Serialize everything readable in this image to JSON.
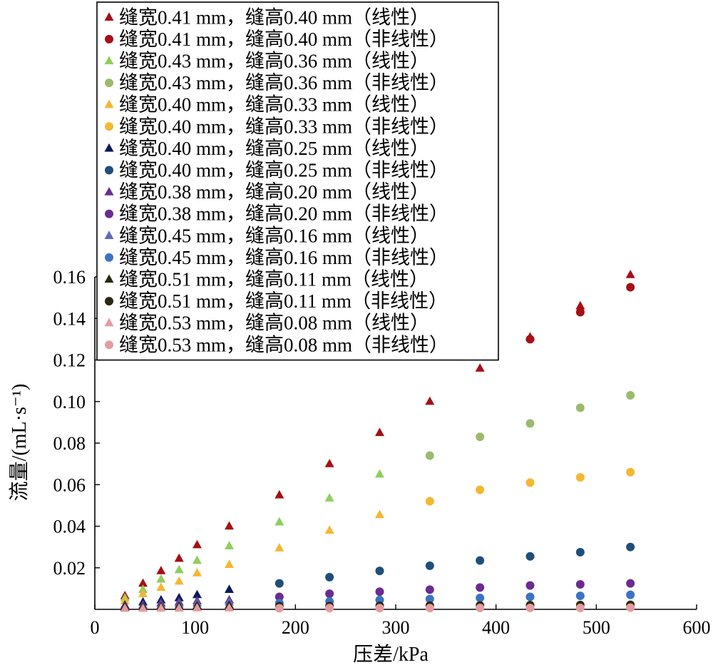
{
  "chart_data": {
    "type": "scatter",
    "xlabel": "压差/kPa",
    "ylabel": "流量/(mL·s⁻¹)",
    "xlim": [
      0,
      600
    ],
    "ylim": [
      0,
      0.16
    ],
    "xticks": [
      "0",
      "100",
      "200",
      "300",
      "400",
      "500",
      "600"
    ],
    "yticks": [
      "0.02",
      "0.04",
      "0.06",
      "0.08",
      "0.10",
      "0.12",
      "0.14",
      "0.16"
    ],
    "grid": false,
    "legend_position": "top-left",
    "x": [
      30,
      48,
      66,
      84,
      102,
      134,
      184,
      234,
      284,
      334,
      384,
      434,
      484,
      534
    ],
    "series": [
      {
        "name": "缝宽0.41 mm，缝高0.40 mm（线性）",
        "marker": "triangle",
        "color": "#a50f15",
        "values": [
          0.0065,
          0.0125,
          0.0185,
          0.0245,
          0.031,
          0.04,
          0.055,
          0.07,
          0.085,
          0.1,
          0.116,
          0.131,
          0.146,
          0.161
        ]
      },
      {
        "name": "缝宽0.41 mm，缝高0.40 mm（非线性）",
        "marker": "circle",
        "color": "#a50f15",
        "values": [
          null,
          null,
          null,
          null,
          null,
          null,
          null,
          null,
          null,
          null,
          null,
          0.13,
          0.143,
          0.155
        ]
      },
      {
        "name": "缝宽0.43 mm，缝高0.36 mm（线性）",
        "marker": "triangle",
        "color": "#8fce5e",
        "values": [
          0.0055,
          0.0095,
          0.0145,
          0.019,
          0.0235,
          0.0305,
          0.042,
          0.0535,
          0.065,
          null,
          null,
          null,
          null,
          null
        ]
      },
      {
        "name": "缝宽0.43 mm，缝高0.36 mm（非线性）",
        "marker": "circle",
        "color": "#9bbb6c",
        "values": [
          null,
          null,
          null,
          null,
          null,
          null,
          null,
          null,
          null,
          0.074,
          0.083,
          0.0895,
          0.097,
          0.103
        ]
      },
      {
        "name": "缝宽0.40 mm，缝高0.33 mm（线性）",
        "marker": "triangle",
        "color": "#f5b731",
        "values": [
          0.004,
          0.0075,
          0.0105,
          0.0135,
          0.0175,
          0.0215,
          0.0295,
          0.038,
          0.0455,
          null,
          null,
          null,
          null,
          null
        ]
      },
      {
        "name": "缝宽0.40 mm，缝高0.33 mm（非线性）",
        "marker": "circle",
        "color": "#f5b731",
        "values": [
          null,
          null,
          null,
          null,
          null,
          null,
          null,
          null,
          null,
          0.052,
          0.0575,
          0.061,
          0.0635,
          0.066
        ]
      },
      {
        "name": "缝宽0.40 mm，缝高0.25 mm（线性）",
        "marker": "triangle",
        "color": "#0b1a5c",
        "values": [
          0.002,
          0.0035,
          0.0045,
          0.0055,
          0.007,
          0.0095,
          null,
          null,
          null,
          null,
          null,
          null,
          null,
          null
        ]
      },
      {
        "name": "缝宽0.40 mm，缝高0.25 mm（非线性）",
        "marker": "circle",
        "color": "#1f4e79",
        "values": [
          null,
          null,
          null,
          null,
          null,
          null,
          0.0125,
          0.0155,
          0.0185,
          0.021,
          0.0235,
          0.0255,
          0.0275,
          0.03
        ]
      },
      {
        "name": "缝宽0.38 mm，缝高0.20 mm（线性）",
        "marker": "triangle",
        "color": "#6a2c91",
        "values": [
          0.0015,
          0.002,
          0.003,
          0.0035,
          0.004,
          0.0045,
          null,
          null,
          null,
          null,
          null,
          null,
          null,
          null
        ]
      },
      {
        "name": "缝宽0.38 mm，缝高0.20 mm（非线性）",
        "marker": "circle",
        "color": "#6a2c91",
        "values": [
          null,
          null,
          null,
          null,
          null,
          null,
          0.006,
          0.0075,
          0.0085,
          0.0095,
          0.0105,
          0.0115,
          0.012,
          0.0125
        ]
      },
      {
        "name": "缝宽0.45 mm，缝高0.16 mm（线性）",
        "marker": "triangle",
        "color": "#5b6bc0",
        "values": [
          0.001,
          0.0015,
          0.002,
          0.0025,
          0.003,
          0.0035,
          null,
          null,
          null,
          null,
          null,
          null,
          null,
          null
        ]
      },
      {
        "name": "缝宽0.45 mm，缝高0.16 mm（非线性）",
        "marker": "circle",
        "color": "#3b73c4",
        "values": [
          null,
          null,
          null,
          null,
          null,
          null,
          0.003,
          0.0038,
          0.0045,
          0.005,
          0.0055,
          0.006,
          0.0065,
          0.007
        ]
      },
      {
        "name": "缝宽0.51 mm，缝高0.11 mm（线性）",
        "marker": "triangle",
        "color": "#2b2a10",
        "values": [
          0.001,
          0.0012,
          0.0014,
          0.0016,
          0.0018,
          0.002,
          null,
          null,
          null,
          null,
          null,
          null,
          null,
          null
        ]
      },
      {
        "name": "缝宽0.51 mm，缝高0.11 mm（非线性）",
        "marker": "circle",
        "color": "#2b2a10",
        "values": [
          null,
          null,
          null,
          null,
          null,
          null,
          0.0015,
          0.0016,
          0.0017,
          0.0018,
          0.0019,
          0.002,
          0.0021,
          0.0022
        ]
      },
      {
        "name": "缝宽0.53 mm，缝高0.08 mm（线性）",
        "marker": "triangle",
        "color": "#e39ca0",
        "values": [
          0.0004,
          0.0004,
          0.0005,
          0.0005,
          0.0006,
          0.0006,
          null,
          null,
          null,
          null,
          null,
          null,
          null,
          null
        ]
      },
      {
        "name": "缝宽0.53 mm，缝高0.08 mm（非线性）",
        "marker": "circle",
        "color": "#e39ca0",
        "values": [
          null,
          null,
          null,
          null,
          null,
          null,
          0.0005,
          0.0006,
          0.0006,
          0.0006,
          0.0007,
          0.0007,
          0.0007,
          0.0008
        ]
      }
    ]
  }
}
